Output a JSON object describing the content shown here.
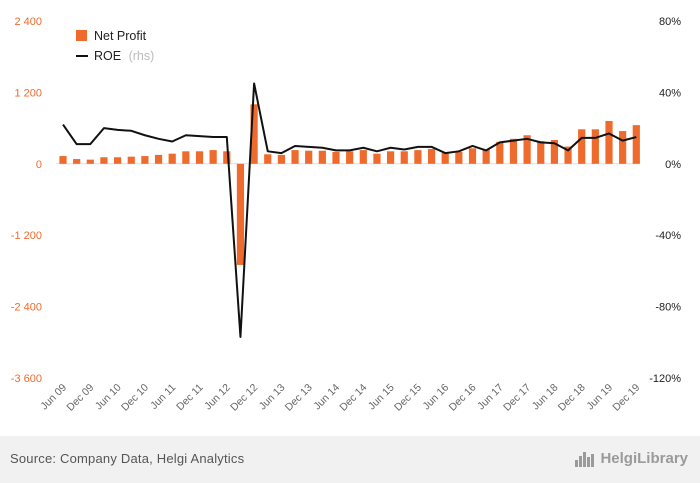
{
  "chart_data": {
    "type": "bar+line",
    "categories": [
      "Jun 09",
      "Sep 09",
      "Dec 09",
      "Mar 10",
      "Jun 10",
      "Sep 10",
      "Dec 10",
      "Mar 11",
      "Jun 11",
      "Sep 11",
      "Dec 11",
      "Mar 12",
      "Jun 12",
      "Sep 12",
      "Dec 12",
      "Mar 13",
      "Jun 13",
      "Sep 13",
      "Dec 13",
      "Mar 14",
      "Jun 14",
      "Sep 14",
      "Dec 14",
      "Mar 15",
      "Jun 15",
      "Sep 15",
      "Dec 15",
      "Mar 16",
      "Jun 16",
      "Sep 16",
      "Dec 16",
      "Mar 17",
      "Jun 17",
      "Sep 17",
      "Dec 17",
      "Mar 18",
      "Jun 18",
      "Sep 18",
      "Dec 18",
      "Mar 19",
      "Jun 19",
      "Sep 19",
      "Dec 19"
    ],
    "x_tick_labels": [
      "Jun 09",
      "Dec 09",
      "Jun 10",
      "Dec 10",
      "Jun 11",
      "Dec 11",
      "Jun 12",
      "Dec 12",
      "Jun 13",
      "Dec 13",
      "Jun 14",
      "Dec 14",
      "Jun 15",
      "Dec 15",
      "Jun 16",
      "Dec 16",
      "Jun 17",
      "Dec 17",
      "Jun 18",
      "Dec 18",
      "Jun 19",
      "Dec 19"
    ],
    "series": [
      {
        "name": "Net Profit",
        "axis": "left",
        "color": "#ef6b2d",
        "values": [
          130,
          80,
          70,
          110,
          110,
          120,
          130,
          150,
          170,
          210,
          210,
          230,
          210,
          -1700,
          1000,
          160,
          150,
          230,
          220,
          220,
          200,
          210,
          230,
          170,
          210,
          210,
          230,
          250,
          180,
          200,
          260,
          240,
          370,
          420,
          480,
          380,
          400,
          290,
          580,
          580,
          720,
          550,
          650
        ]
      },
      {
        "name": "ROE",
        "name_suffix": "(rhs)",
        "axis": "right",
        "color": "#111111",
        "values": [
          22,
          11,
          11,
          20,
          19,
          18.5,
          16,
          14,
          12.5,
          16,
          15.5,
          15,
          15,
          -97,
          45,
          7,
          6,
          10,
          9.5,
          9,
          7.5,
          7.5,
          9,
          7,
          9,
          8,
          9.5,
          9.5,
          6,
          7,
          10,
          7.5,
          12,
          13,
          14,
          12,
          11.5,
          7.5,
          14.5,
          14.5,
          17,
          13,
          15
        ]
      }
    ],
    "left_axis": {
      "ylim": [
        -3600,
        2400
      ],
      "ticks": [
        2400,
        1200,
        0,
        -1200,
        -2400,
        -3600
      ],
      "tick_labels": [
        "2 400",
        "1 200",
        "0",
        "-1 200",
        "-2 400",
        "-3 600"
      ]
    },
    "right_axis": {
      "ylim": [
        -120,
        80
      ],
      "ticks": [
        80,
        40,
        0,
        -40,
        -80,
        -120
      ],
      "tick_labels": [
        "80%",
        "40%",
        "0%",
        "-40%",
        "-80%",
        "-120%"
      ]
    },
    "legend": [
      "Net Profit",
      "ROE"
    ],
    "legend_placement": "top-left"
  },
  "footer": {
    "source": "Source: Company Data, Helgi Analytics",
    "brand": "HelgiLibrary",
    "brand_icon": "helgi-library-icon"
  },
  "colors": {
    "bar": "#ef6b2d",
    "line": "#111111",
    "left_ticks": "#ef6b2d",
    "footer_bg": "#f1f1f1"
  }
}
